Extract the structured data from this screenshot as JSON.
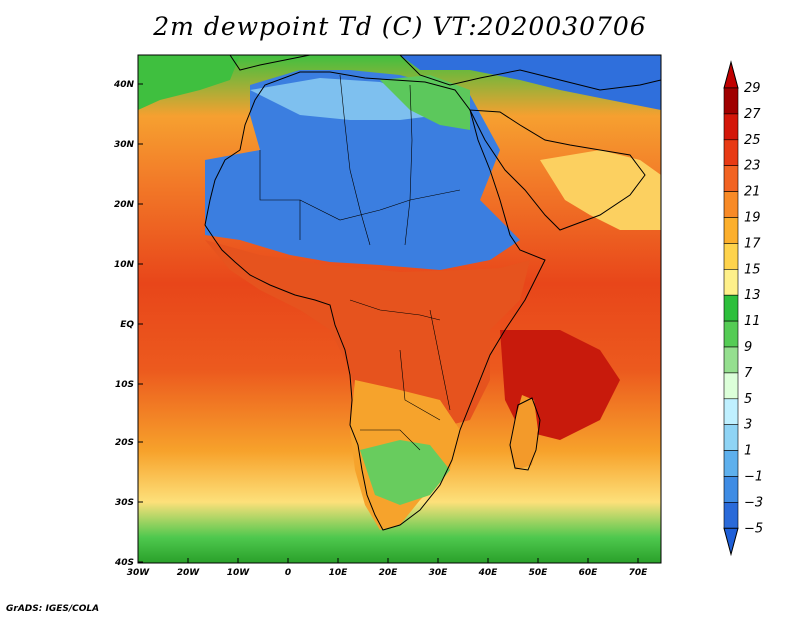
{
  "title": "2m dewpoint Td (C) VT:2020030706",
  "footer": "GrADS: IGES/COLA",
  "map": {
    "lon_ticks": [
      "30W",
      "20W",
      "10W",
      "0",
      "10E",
      "20E",
      "30E",
      "40E",
      "50E",
      "60E",
      "70E"
    ],
    "lat_ticks": [
      "40N",
      "30N",
      "20N",
      "10N",
      "EQ",
      "10S",
      "20S",
      "30S",
      "40S"
    ],
    "lon_range": [
      -30,
      75
    ],
    "lat_range": [
      -40,
      45
    ]
  },
  "colorbar": {
    "labels": [
      "29",
      "27",
      "25",
      "23",
      "21",
      "19",
      "17",
      "15",
      "13",
      "11",
      "9",
      "7",
      "5",
      "3",
      "1",
      "-1",
      "-3",
      "-5"
    ],
    "colors": [
      "#a00000",
      "#d4170a",
      "#e83a14",
      "#f26322",
      "#f88a26",
      "#fcaf2c",
      "#fed34c",
      "#fef08a",
      "#2dbf3b",
      "#55cc55",
      "#95df8f",
      "#dcffd9",
      "#bff0ff",
      "#8fd4f5",
      "#5eb0ed",
      "#3f8ce4",
      "#2a6ad9"
    ],
    "top_color": "#c00000",
    "bottom_color": "#1e5fd8"
  }
}
